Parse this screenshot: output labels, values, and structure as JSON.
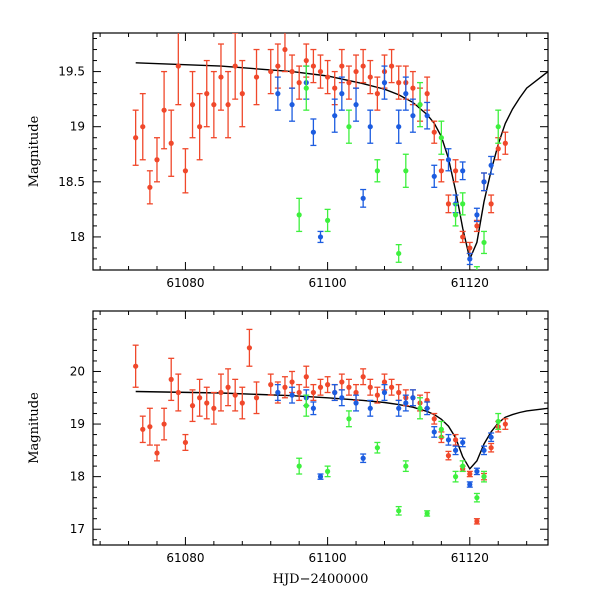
{
  "chart_data": [
    {
      "type": "scatter",
      "panel": "top",
      "xlabel": "",
      "ylabel": "Magnitude",
      "xlim": [
        61067,
        61131
      ],
      "ylim": [
        19.85,
        17.7
      ],
      "x_ticks": [
        61080,
        61100,
        61120
      ],
      "y_ticks": [
        18,
        18.5,
        19,
        19.5
      ],
      "x_tick_labels": [
        "61080",
        "61100",
        "61120"
      ],
      "y_tick_labels": [
        "18",
        "18.5",
        "19",
        "19.5"
      ],
      "model_curve": {
        "name": "model",
        "color": "#000000",
        "x": [
          61073,
          61085,
          61095,
          61100,
          61105,
          61108,
          61110,
          61112,
          61114,
          61115,
          61116,
          61117,
          61118,
          61119,
          61120,
          61121,
          61122,
          61123,
          61124,
          61125,
          61126,
          61127,
          61128,
          61131
        ],
        "y": [
          19.58,
          19.55,
          19.5,
          19.46,
          19.39,
          19.34,
          19.29,
          19.22,
          19.11,
          19.03,
          18.91,
          18.71,
          18.42,
          18.08,
          17.8,
          17.95,
          18.32,
          18.6,
          18.84,
          19.03,
          19.16,
          19.26,
          19.35,
          19.5
        ]
      },
      "series": [
        {
          "name": "red",
          "color": "#f0482b",
          "x": [
            61073,
            61074,
            61075,
            61076,
            61077,
            61078,
            61079,
            61080,
            61081,
            61082,
            61083,
            61084,
            61085,
            61086,
            61087,
            61088,
            61090,
            61092,
            61093,
            61094,
            61095,
            61096,
            61097,
            61098,
            61099,
            61100,
            61101,
            61102,
            61103,
            61104,
            61105,
            61106,
            61107,
            61108,
            61109,
            61110,
            61111,
            61112,
            61113,
            61114,
            61115,
            61116,
            61117,
            61118,
            61119,
            61120,
            61121,
            61122,
            61123,
            61124,
            61125
          ],
          "y": [
            18.9,
            19.0,
            18.45,
            18.7,
            19.15,
            18.85,
            19.55,
            18.6,
            19.2,
            19.0,
            19.3,
            19.2,
            19.45,
            19.2,
            19.55,
            19.3,
            19.45,
            19.5,
            19.55,
            19.7,
            19.5,
            19.4,
            19.6,
            19.55,
            19.5,
            19.45,
            19.35,
            19.55,
            19.4,
            19.5,
            19.55,
            19.45,
            19.3,
            19.5,
            19.55,
            19.4,
            19.4,
            19.35,
            19.2,
            19.3,
            18.95,
            18.6,
            18.3,
            18.6,
            18.0,
            17.9,
            18.1,
            18.5,
            18.3,
            18.8,
            18.85
          ],
          "err": [
            0.25,
            0.3,
            0.15,
            0.2,
            0.35,
            0.3,
            0.35,
            0.2,
            0.3,
            0.3,
            0.3,
            0.3,
            0.3,
            0.3,
            0.3,
            0.3,
            0.25,
            0.2,
            0.2,
            0.2,
            0.15,
            0.15,
            0.15,
            0.15,
            0.15,
            0.15,
            0.15,
            0.15,
            0.15,
            0.15,
            0.15,
            0.15,
            0.15,
            0.15,
            0.15,
            0.15,
            0.15,
            0.15,
            0.15,
            0.15,
            0.1,
            0.1,
            0.08,
            0.1,
            0.05,
            0.05,
            0.05,
            0.08,
            0.08,
            0.1,
            0.1
          ]
        },
        {
          "name": "blue",
          "color": "#1c5ce0",
          "x": [
            61093,
            61095,
            61097,
            61098,
            61099,
            61101,
            61102,
            61104,
            61105,
            61106,
            61108,
            61110,
            61111,
            61112,
            61114,
            61115,
            61117,
            61118,
            61119,
            61120,
            61121,
            61122,
            61123
          ],
          "y": [
            19.3,
            19.2,
            19.4,
            18.95,
            18.0,
            19.1,
            19.3,
            19.2,
            18.35,
            19.0,
            19.4,
            19.0,
            19.3,
            19.1,
            19.1,
            18.55,
            18.7,
            18.3,
            18.6,
            17.8,
            18.2,
            18.5,
            18.65
          ],
          "err": [
            0.15,
            0.15,
            0.15,
            0.12,
            0.05,
            0.15,
            0.15,
            0.15,
            0.08,
            0.15,
            0.15,
            0.15,
            0.15,
            0.15,
            0.12,
            0.1,
            0.1,
            0.08,
            0.08,
            0.05,
            0.06,
            0.08,
            0.08
          ]
        },
        {
          "name": "green",
          "color": "#3ef03e",
          "x": [
            61096,
            61097,
            61100,
            61103,
            61107,
            61110,
            61111,
            61113,
            61116,
            61118,
            61119,
            61121,
            61122,
            61124
          ],
          "y": [
            18.2,
            19.35,
            18.15,
            19.0,
            18.6,
            17.85,
            18.6,
            19.2,
            18.9,
            18.2,
            18.3,
            17.65,
            17.95,
            19.0
          ],
          "err": [
            0.15,
            0.2,
            0.1,
            0.15,
            0.1,
            0.08,
            0.15,
            0.2,
            0.15,
            0.1,
            0.1,
            0.08,
            0.1,
            0.15
          ]
        }
      ]
    },
    {
      "type": "scatter",
      "panel": "bottom",
      "xlabel": "HJD−2400000",
      "ylabel": "Magnitude",
      "xlim": [
        61067,
        61131
      ],
      "ylim": [
        21.15,
        16.7
      ],
      "x_ticks": [
        61080,
        61100,
        61120
      ],
      "y_ticks": [
        17,
        18,
        19,
        20
      ],
      "x_tick_labels": [
        "61080",
        "61100",
        "61120"
      ],
      "y_tick_labels": [
        "17",
        "18",
        "19",
        "20"
      ],
      "model_curve": {
        "name": "model",
        "color": "#000000",
        "x": [
          61073,
          61085,
          61095,
          61100,
          61105,
          61108,
          61110,
          61112,
          61114,
          61115,
          61116,
          61117,
          61118,
          61119,
          61120,
          61121,
          61122,
          61123,
          61124,
          61125,
          61126,
          61127,
          61128,
          61131
        ],
        "y": [
          19.62,
          19.59,
          19.54,
          19.5,
          19.45,
          19.41,
          19.37,
          19.32,
          19.24,
          19.18,
          19.09,
          18.96,
          18.74,
          18.38,
          18.15,
          18.3,
          18.62,
          18.85,
          19.02,
          19.13,
          19.18,
          19.22,
          19.25,
          19.3
        ]
      },
      "series": [
        {
          "name": "red",
          "color": "#f0482b",
          "x": [
            61073,
            61074,
            61075,
            61076,
            61077,
            61078,
            61079,
            61080,
            61081,
            61082,
            61083,
            61084,
            61085,
            61086,
            61087,
            61088,
            61089,
            61090,
            61092,
            61093,
            61094,
            61095,
            61096,
            61097,
            61098,
            61099,
            61100,
            61101,
            61102,
            61103,
            61104,
            61105,
            61106,
            61107,
            61108,
            61109,
            61110,
            61111,
            61112,
            61113,
            61114,
            61115,
            61116,
            61117,
            61118,
            61119,
            61120,
            61121,
            61122,
            61123,
            61124,
            61125
          ],
          "y": [
            20.1,
            18.9,
            18.95,
            18.45,
            19.0,
            19.85,
            19.6,
            18.65,
            19.35,
            19.5,
            19.4,
            19.3,
            19.6,
            19.7,
            19.55,
            19.4,
            20.45,
            19.5,
            19.75,
            19.6,
            19.7,
            19.8,
            19.6,
            19.9,
            19.6,
            19.7,
            19.75,
            19.6,
            19.8,
            19.7,
            19.6,
            19.9,
            19.7,
            19.55,
            19.8,
            19.7,
            19.6,
            19.5,
            19.5,
            19.4,
            19.45,
            19.1,
            18.75,
            18.4,
            18.7,
            18.15,
            18.05,
            17.15,
            18.0,
            18.55,
            18.95,
            19.0
          ],
          "err": [
            0.4,
            0.25,
            0.35,
            0.15,
            0.3,
            0.4,
            0.35,
            0.15,
            0.3,
            0.35,
            0.3,
            0.3,
            0.35,
            0.35,
            0.3,
            0.3,
            0.35,
            0.3,
            0.2,
            0.2,
            0.2,
            0.2,
            0.15,
            0.2,
            0.15,
            0.15,
            0.15,
            0.15,
            0.15,
            0.15,
            0.15,
            0.15,
            0.15,
            0.15,
            0.15,
            0.15,
            0.15,
            0.15,
            0.15,
            0.15,
            0.15,
            0.1,
            0.1,
            0.08,
            0.1,
            0.05,
            0.05,
            0.05,
            0.06,
            0.08,
            0.1,
            0.1
          ]
        },
        {
          "name": "blue",
          "color": "#1c5ce0",
          "x": [
            61093,
            61095,
            61097,
            61098,
            61099,
            61101,
            61102,
            61104,
            61105,
            61106,
            61108,
            61110,
            61111,
            61112,
            61114,
            61115,
            61117,
            61118,
            61119,
            61120,
            61121,
            61122,
            61123
          ],
          "y": [
            19.6,
            19.55,
            19.5,
            19.3,
            18.0,
            19.6,
            19.5,
            19.4,
            18.35,
            19.3,
            19.6,
            19.3,
            19.4,
            19.5,
            19.3,
            18.85,
            18.7,
            18.5,
            18.65,
            17.85,
            18.1,
            18.5,
            18.75
          ],
          "err": [
            0.15,
            0.15,
            0.15,
            0.12,
            0.05,
            0.15,
            0.15,
            0.15,
            0.08,
            0.15,
            0.15,
            0.15,
            0.15,
            0.15,
            0.12,
            0.1,
            0.1,
            0.08,
            0.08,
            0.05,
            0.06,
            0.08,
            0.08
          ]
        },
        {
          "name": "green",
          "color": "#3ef03e",
          "x": [
            61096,
            61097,
            61100,
            61103,
            61107,
            61110,
            61111,
            61113,
            61114,
            61116,
            61118,
            61119,
            61121,
            61122,
            61124
          ],
          "y": [
            18.2,
            19.35,
            18.1,
            19.1,
            18.55,
            17.35,
            18.2,
            19.3,
            17.3,
            18.9,
            18.0,
            18.2,
            17.6,
            18.0,
            19.05
          ],
          "err": [
            0.15,
            0.2,
            0.1,
            0.15,
            0.1,
            0.08,
            0.1,
            0.2,
            0.05,
            0.15,
            0.1,
            0.1,
            0.08,
            0.1,
            0.15
          ]
        }
      ]
    }
  ]
}
